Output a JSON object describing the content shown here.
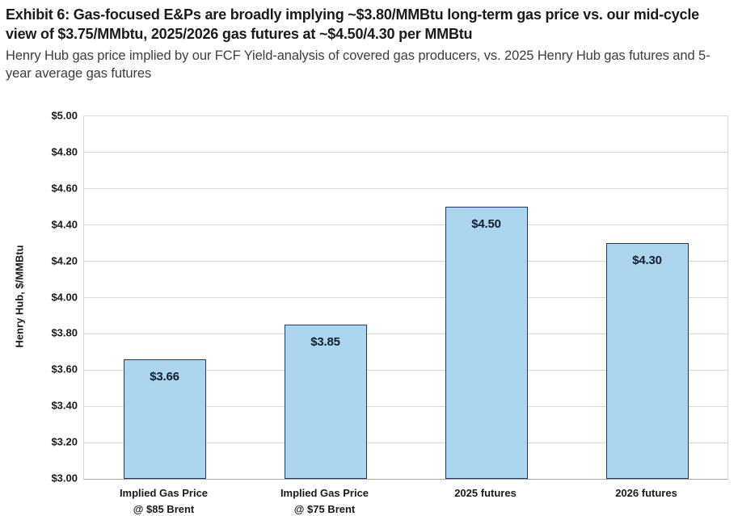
{
  "header": {
    "title": "Exhibit 6: Gas-focused E&Ps are broadly implying ~$3.80/MMBtu long-term gas price vs. our mid-cycle view of $3.75/MMbtu, 2025/2026 gas futures at ~$4.50/4.30 per MMBtu",
    "subtitle": "Henry Hub gas price implied by our FCF Yield-analysis of covered gas producers, vs. 2025 Henry Hub gas futures and 5-year average gas futures"
  },
  "chart_data": {
    "type": "bar",
    "title": "",
    "categories": [
      "Implied Gas Price\n@ $85 Brent",
      "Implied Gas Price\n@ $75 Brent",
      "2025 futures",
      "2026 futures"
    ],
    "values": [
      3.66,
      3.85,
      4.5,
      4.3
    ],
    "data_labels": [
      "$3.66",
      "$3.85",
      "$4.50",
      "$4.30"
    ],
    "xlabel": "",
    "ylabel": "Henry Hub, $/MMBtu",
    "ylim": [
      3.0,
      5.0
    ],
    "ytick_step": 0.2,
    "ytick_labels": [
      "$3.00",
      "$3.20",
      "$3.40",
      "$3.60",
      "$3.80",
      "$4.00",
      "$4.20",
      "$4.40",
      "$4.60",
      "$4.80",
      "$5.00"
    ],
    "grid": true,
    "legend": false,
    "colors": {
      "bar_fill": "#acd5f0",
      "bar_border": "#1f3864",
      "gridline": "#d9d9d9",
      "axis_line": "#a6a6a6",
      "label_text": "#141e30"
    }
  }
}
